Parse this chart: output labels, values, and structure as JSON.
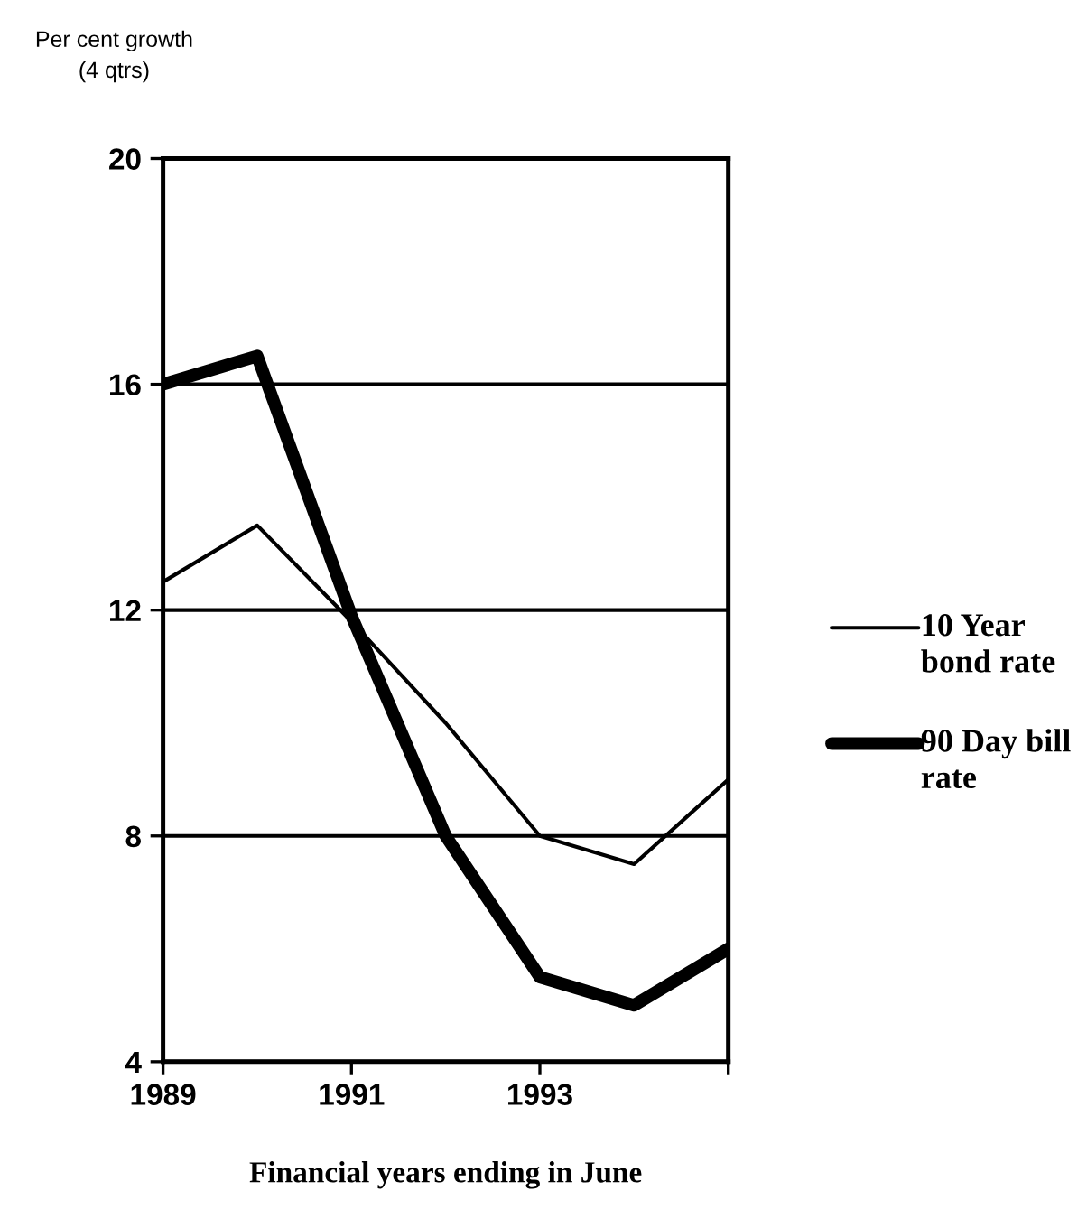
{
  "chart_data": {
    "type": "line",
    "ylabel": "Per cent growth\n(4 qtrs)",
    "xlabel": "Financial years ending in June",
    "x": [
      1989,
      1990,
      1991,
      1992,
      1993,
      1994,
      1995
    ],
    "series": [
      {
        "name": "10 Year bond rate",
        "color": "#000000",
        "values": [
          12.5,
          13.5,
          11.8,
          10,
          8,
          7.5,
          9
        ]
      },
      {
        "name": "90 Day bill rate",
        "color": "#000000",
        "values": [
          16,
          16.5,
          11.9,
          8,
          5.5,
          5,
          6
        ]
      }
    ],
    "xlim": [
      1989,
      1995
    ],
    "xticks": [
      1989,
      1991,
      1993,
      {
        "value": 1995,
        "label": null
      }
    ],
    "ylim": [
      4,
      20
    ],
    "yticks": [
      4,
      8,
      12,
      16,
      20
    ],
    "grid": "y",
    "legend": "right",
    "marker": "none",
    "line_style": "solid"
  }
}
